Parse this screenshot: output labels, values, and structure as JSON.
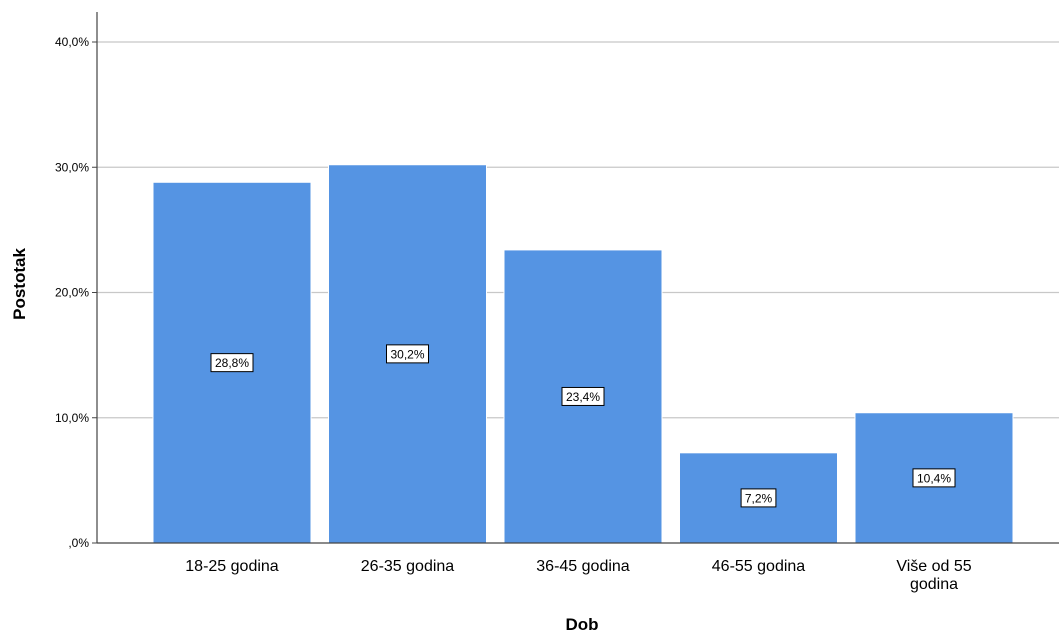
{
  "chart_data": {
    "type": "bar",
    "categories": [
      [
        "18-25 godina"
      ],
      [
        "26-35 godina"
      ],
      [
        "36-45 godina"
      ],
      [
        "46-55 godina"
      ],
      [
        "Više od 55",
        "godina"
      ]
    ],
    "values": [
      28.8,
      30.2,
      23.4,
      7.2,
      10.4
    ],
    "data_labels": [
      "28,8%",
      "30,2%",
      "23,4%",
      "7,2%",
      "10,4%"
    ],
    "yticks": [
      0,
      10,
      20,
      30,
      40
    ],
    "ytick_labels": [
      ",0%",
      "10,0%",
      "20,0%",
      "30,0%",
      "40,0%"
    ],
    "ylim": [
      0,
      42
    ],
    "xlabel": "Dob",
    "ylabel": "Postotak",
    "grid": "horizontal",
    "bar_color": "#5594e3",
    "bar_edge_color": "#ffffff",
    "grid_color": "#c8c8c8",
    "axis_color": "#444444",
    "text_color": "#000000"
  }
}
